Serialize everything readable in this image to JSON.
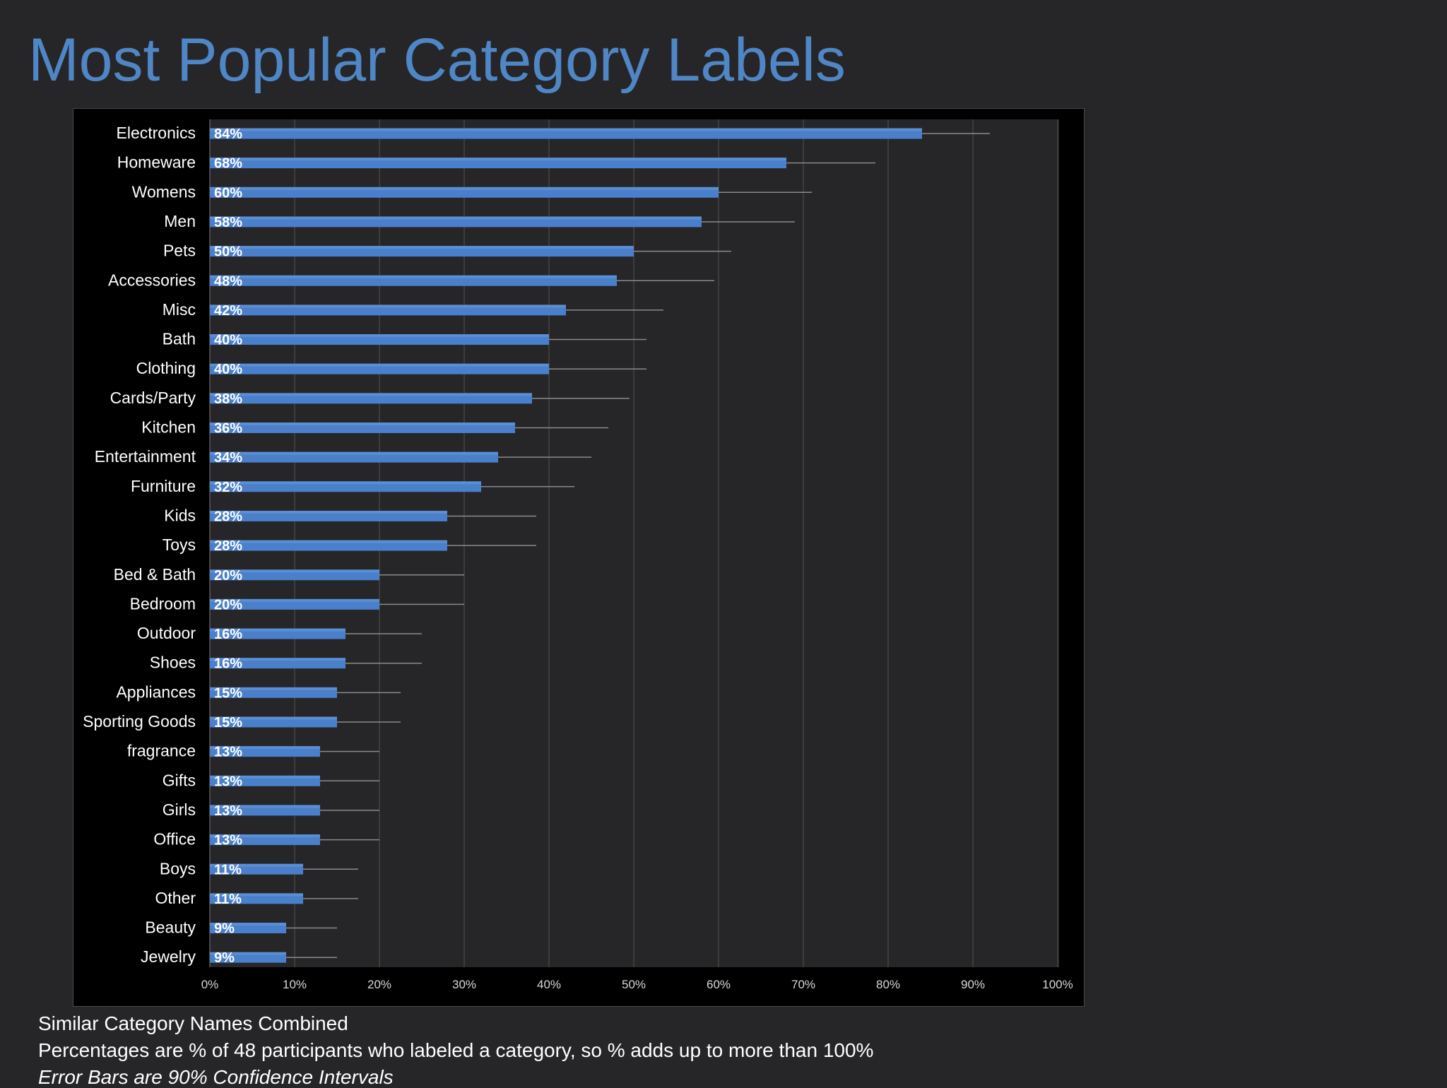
{
  "slide": {
    "title": "Most Popular Category Labels",
    "footnotes": [
      "Similar Category Names Combined",
      "Percentages  are % of 48 participants who labeled a category, so % adds up to more than 100%",
      "Error Bars are 90% Confidence Intervals"
    ]
  },
  "colors": {
    "background": "#262628",
    "title": "#4f86c6",
    "bar": "#4a7fcb",
    "plot_area": "#262628",
    "frame": "#000000"
  },
  "chart_data": {
    "type": "bar",
    "orientation": "horizontal",
    "title": "",
    "xlabel": "",
    "ylabel": "",
    "xlim": [
      0,
      100
    ],
    "x_ticks": [
      "0%",
      "10%",
      "20%",
      "30%",
      "40%",
      "50%",
      "60%",
      "70%",
      "80%",
      "90%",
      "100%"
    ],
    "grid": true,
    "categories": [
      "Electronics",
      "Homeware",
      "Womens",
      "Men",
      "Pets",
      "Accessories",
      "Misc",
      "Bath",
      "Clothing",
      "Cards/Party",
      "Kitchen",
      "Entertainment",
      "Furniture",
      "Kids",
      "Toys",
      "Bed & Bath",
      "Bedroom",
      "Outdoor",
      "Shoes",
      "Appliances",
      "Sporting Goods",
      "fragrance",
      "Gifts",
      "Girls",
      "Office",
      "Boys",
      "Other",
      "Beauty",
      "Jewelry"
    ],
    "values": [
      84,
      68,
      60,
      58,
      50,
      48,
      42,
      40,
      40,
      38,
      36,
      34,
      32,
      28,
      28,
      20,
      20,
      16,
      16,
      15,
      15,
      13,
      13,
      13,
      13,
      11,
      11,
      9,
      9
    ],
    "value_labels": [
      "84%",
      "68%",
      "60%",
      "58%",
      "50%",
      "48%",
      "42%",
      "40%",
      "40%",
      "38%",
      "36%",
      "34%",
      "32%",
      "28%",
      "28%",
      "20%",
      "20%",
      "16%",
      "16%",
      "15%",
      "15%",
      "13%",
      "13%",
      "13%",
      "13%",
      "11%",
      "11%",
      "9%",
      "9%"
    ],
    "error_upper": [
      92,
      78.5,
      71,
      69,
      61.5,
      59.5,
      53.5,
      51.5,
      51.5,
      49.5,
      47,
      45,
      43,
      38.5,
      38.5,
      30,
      30,
      25,
      25,
      22.5,
      22.5,
      20,
      20,
      20,
      20,
      17.5,
      17.5,
      15,
      15
    ],
    "error_bars": "90% confidence intervals"
  }
}
